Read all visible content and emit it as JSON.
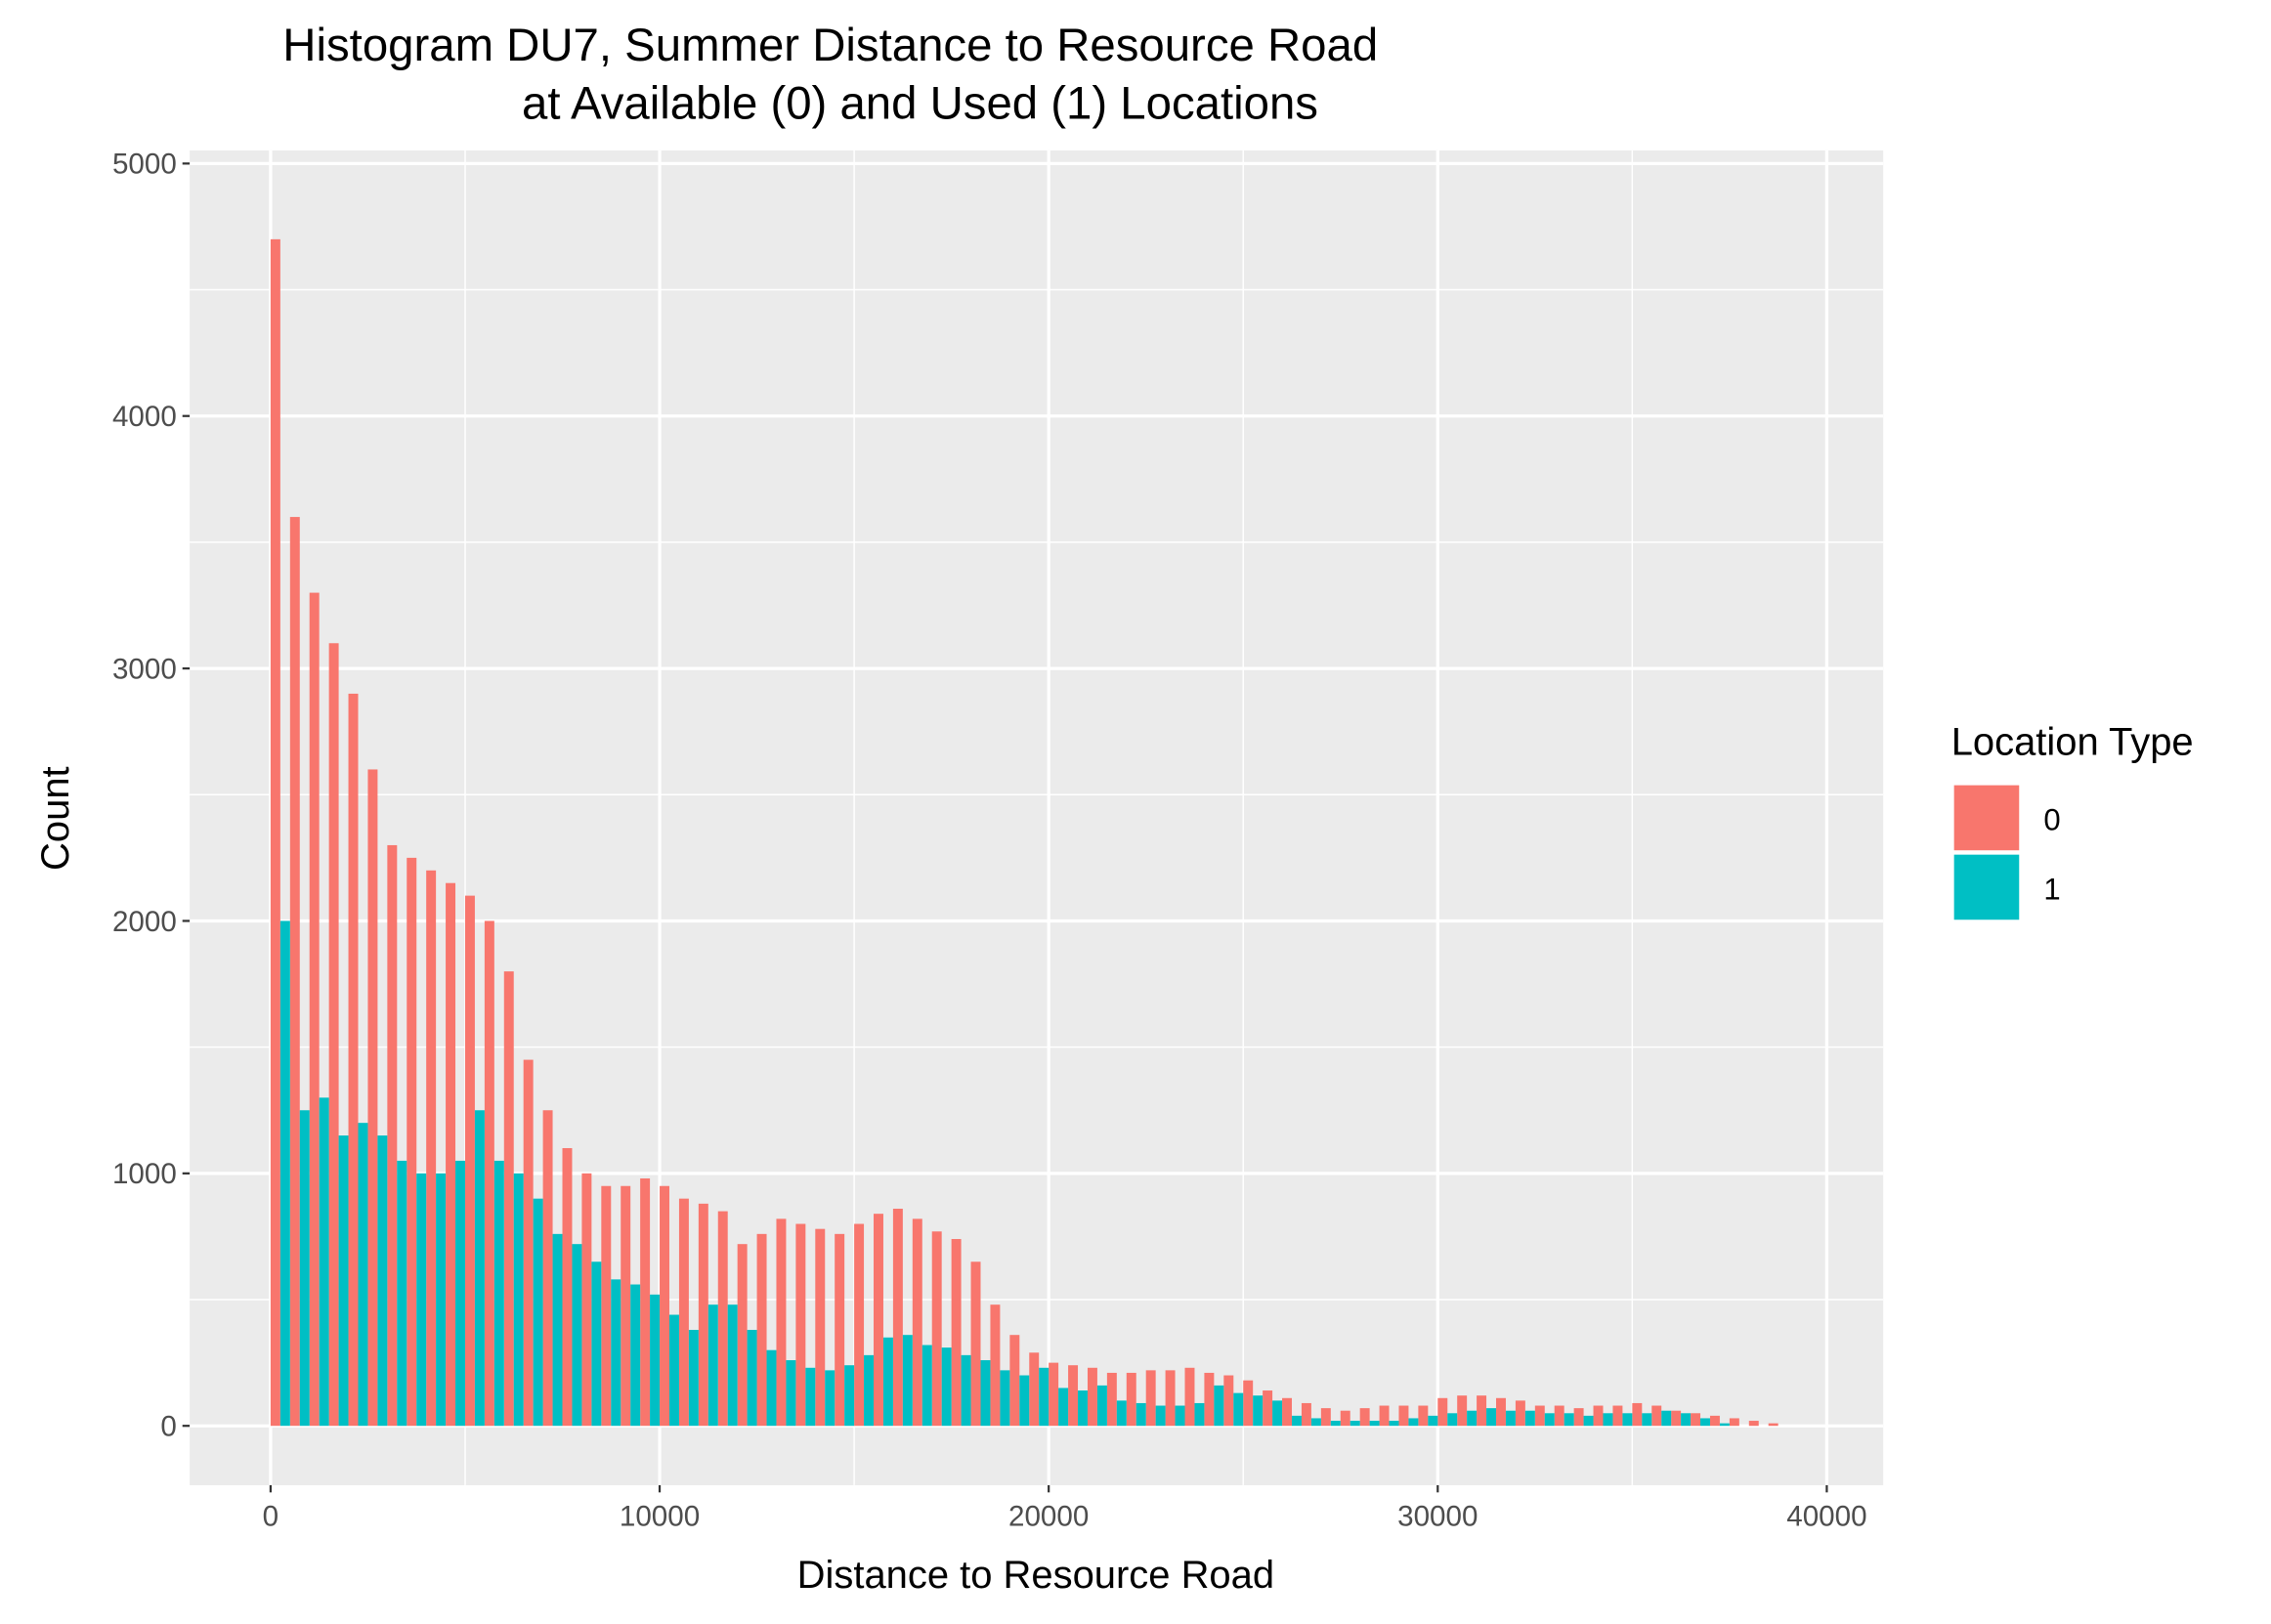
{
  "chart_data": {
    "type": "histogram",
    "title": [
      "Histogram DU7, Summer Distance to Resource Road",
      "at Available (0) and Used (1) Locations"
    ],
    "x_label": "Distance to Resource Road",
    "y_label": "Count",
    "legend_title": "Location Type",
    "legend_position": "right",
    "grid": true,
    "position": "dodge",
    "bins": [
      0,
      500,
      1000,
      1500,
      2000,
      2500,
      3000,
      3500,
      4000,
      4500,
      5000,
      5500,
      6000,
      6500,
      7000,
      7500,
      8000,
      8500,
      9000,
      9500,
      10000,
      10500,
      11000,
      11500,
      12000,
      12500,
      13000,
      13500,
      14000,
      14500,
      15000,
      15500,
      16000,
      16500,
      17000,
      17500,
      18000,
      18500,
      19000,
      19500,
      20000,
      20500,
      21000,
      21500,
      22000,
      22500,
      23000,
      23500,
      24000,
      24500,
      25000,
      25500,
      26000,
      26500,
      27000,
      27500,
      28000,
      28500,
      29000,
      29500,
      30000,
      30500,
      31000,
      31500,
      32000,
      32500,
      33000,
      33500,
      34000,
      34500,
      35000,
      35500,
      36000,
      36500,
      37000,
      37500,
      38000,
      38500,
      39000
    ],
    "series": [
      {
        "name": "0",
        "color": "#F8766D",
        "values": [
          4700,
          3600,
          3300,
          3100,
          2900,
          2600,
          2300,
          2250,
          2200,
          2150,
          2100,
          2000,
          1800,
          1450,
          1250,
          1100,
          1000,
          950,
          950,
          980,
          950,
          900,
          880,
          850,
          720,
          760,
          820,
          800,
          780,
          760,
          800,
          840,
          860,
          820,
          770,
          740,
          650,
          480,
          360,
          290,
          250,
          240,
          230,
          210,
          210,
          220,
          220,
          230,
          210,
          200,
          180,
          140,
          110,
          90,
          70,
          60,
          70,
          80,
          80,
          80,
          110,
          120,
          120,
          110,
          100,
          80,
          80,
          70,
          80,
          80,
          90,
          80,
          60,
          50,
          40,
          30,
          20,
          10
        ]
      },
      {
        "name": "1",
        "color": "#00BFC4",
        "values": [
          2000,
          1250,
          1300,
          1150,
          1200,
          1150,
          1050,
          1000,
          1000,
          1050,
          1250,
          1050,
          1000,
          900,
          760,
          720,
          650,
          580,
          560,
          520,
          440,
          380,
          480,
          480,
          380,
          300,
          260,
          230,
          220,
          240,
          280,
          350,
          360,
          320,
          310,
          280,
          260,
          220,
          200,
          230,
          150,
          140,
          160,
          100,
          90,
          80,
          80,
          90,
          160,
          130,
          120,
          100,
          40,
          30,
          20,
          20,
          20,
          20,
          30,
          40,
          50,
          60,
          70,
          60,
          60,
          50,
          50,
          40,
          50,
          50,
          50,
          60,
          50,
          30,
          10,
          0,
          0,
          0
        ]
      }
    ],
    "xlim": [
      -2080,
      41450
    ],
    "xticks": [
      0,
      10000,
      20000,
      30000,
      40000
    ],
    "ylim": [
      -235,
      5052
    ],
    "yticks": [
      0,
      1000,
      2000,
      3000,
      4000,
      5000
    ]
  }
}
